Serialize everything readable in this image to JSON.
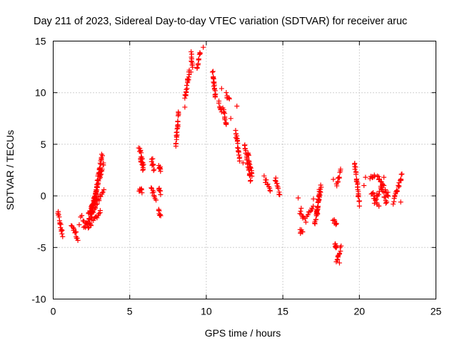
{
  "chart_data": {
    "type": "scatter",
    "title": "Day 211 of 2023, Sidereal Day-to-day VTEC variation (SDTVAR) for receiver aruc",
    "xlabel": "GPS time / hours",
    "ylabel": "SDTVAR / TECUs",
    "xlim": [
      0,
      25
    ],
    "ylim": [
      -10,
      15
    ],
    "xticks": [
      0,
      5,
      10,
      15,
      20,
      25
    ],
    "yticks": [
      -10,
      -5,
      0,
      5,
      10,
      15
    ],
    "grid": true,
    "marker": "+",
    "color": "#ff0000",
    "series": [
      {
        "name": "SDTVAR",
        "segments": [
          {
            "x": [
              0.3,
              0.6
            ],
            "y": [
              -1.6,
              -3.8
            ]
          },
          {
            "x": [
              1.2,
              1.6
            ],
            "y": [
              -2.8,
              -4.2
            ]
          },
          {
            "x": [
              1.8,
              2.4
            ],
            "y": [
              -2.0,
              -2.8
            ]
          },
          {
            "x": [
              2.3,
              2.9
            ],
            "y": [
              -1.8,
              0.0
            ]
          },
          {
            "x": [
              2.4,
              3.3
            ],
            "y": [
              -1.8,
              3.2
            ]
          },
          {
            "x": [
              2.5,
              3.2
            ],
            "y": [
              -2.0,
              4.0
            ]
          },
          {
            "x": [
              2.0,
              3.3
            ],
            "y": [
              -3.2,
              0.5
            ]
          },
          {
            "x": [
              2.3,
              3.1
            ],
            "y": [
              -3.0,
              -1.5
            ]
          },
          {
            "x": [
              5.6,
              5.9
            ],
            "y": [
              4.8,
              3.0
            ]
          },
          {
            "x": [
              5.7,
              5.9
            ],
            "y": [
              3.8,
              2.5
            ]
          },
          {
            "x": [
              5.6,
              5.8
            ],
            "y": [
              0.4,
              0.8
            ]
          },
          {
            "x": [
              6.4,
              6.6
            ],
            "y": [
              3.5,
              2.5
            ]
          },
          {
            "x": [
              6.4,
              6.7
            ],
            "y": [
              0.8,
              -0.4
            ]
          },
          {
            "x": [
              6.9,
              7.0
            ],
            "y": [
              2.8,
              2.5
            ]
          },
          {
            "x": [
              6.9,
              7.0
            ],
            "y": [
              -1.4,
              -1.8
            ]
          },
          {
            "x": [
              6.9,
              7.0
            ],
            "y": [
              0.8,
              0.2
            ]
          },
          {
            "x": [
              8.0,
              8.2
            ],
            "y": [
              5.0,
              8.0
            ]
          },
          {
            "x": [
              8.6,
              8.9
            ],
            "y": [
              9.5,
              12.0
            ]
          },
          {
            "x": [
              9.0,
              9.1
            ],
            "y": [
              13.8,
              12.5
            ]
          },
          {
            "x": [
              9.4,
              9.6
            ],
            "y": [
              12.4,
              13.8
            ]
          },
          {
            "x": [
              10.4,
              10.6
            ],
            "y": [
              12.0,
              9.5
            ]
          },
          {
            "x": [
              10.8,
              11.0
            ],
            "y": [
              9.0,
              8.2
            ]
          },
          {
            "x": [
              11.1,
              11.3
            ],
            "y": [
              8.5,
              6.8
            ]
          },
          {
            "x": [
              11.3,
              11.5
            ],
            "y": [
              9.8,
              9.5
            ]
          },
          {
            "x": [
              11.9,
              12.2
            ],
            "y": [
              6.3,
              3.5
            ]
          },
          {
            "x": [
              12.5,
              12.9
            ],
            "y": [
              5.0,
              1.5
            ]
          },
          {
            "x": [
              12.7,
              13.0
            ],
            "y": [
              4.2,
              2.0
            ]
          },
          {
            "x": [
              13.8,
              14.2
            ],
            "y": [
              1.8,
              0.5
            ]
          },
          {
            "x": [
              14.5,
              14.8
            ],
            "y": [
              1.7,
              0.2
            ]
          },
          {
            "x": [
              16.1,
              16.3
            ],
            "y": [
              -3.4,
              -3.6
            ]
          },
          {
            "x": [
              16.1,
              16.5
            ],
            "y": [
              -1.5,
              -2.5
            ]
          },
          {
            "x": [
              16.6,
              17.0
            ],
            "y": [
              -1.8,
              -1.0
            ]
          },
          {
            "x": [
              17.1,
              17.4
            ],
            "y": [
              -2.8,
              0.5
            ]
          },
          {
            "x": [
              17.2,
              17.5
            ],
            "y": [
              -2.0,
              1.0
            ]
          },
          {
            "x": [
              18.3,
              18.5
            ],
            "y": [
              -2.4,
              -2.8
            ]
          },
          {
            "x": [
              18.4,
              18.5
            ],
            "y": [
              -4.7,
              -5.0
            ]
          },
          {
            "x": [
              18.5,
              18.8
            ],
            "y": [
              -6.4,
              -5.0
            ]
          },
          {
            "x": [
              18.5,
              18.8
            ],
            "y": [
              1.0,
              2.4
            ]
          },
          {
            "x": [
              19.7,
              20.0
            ],
            "y": [
              3.2,
              -0.8
            ]
          },
          {
            "x": [
              20.7,
              21.0
            ],
            "y": [
              1.8,
              1.9
            ]
          },
          {
            "x": [
              20.8,
              21.3
            ],
            "y": [
              0.2,
              -1.0
            ]
          },
          {
            "x": [
              21.2,
              21.8
            ],
            "y": [
              2.0,
              -0.8
            ]
          },
          {
            "x": [
              21.4,
              21.9
            ],
            "y": [
              1.5,
              0.0
            ]
          },
          {
            "x": [
              22.2,
              22.8
            ],
            "y": [
              -0.6,
              2.1
            ]
          },
          {
            "x": [
              21.0,
              21.3
            ],
            "y": [
              -0.5,
              0.5
            ]
          }
        ],
        "points": [
          {
            "x": 1.5,
            "y": -3.5
          },
          {
            "x": 1.7,
            "y": -2.8
          },
          {
            "x": 5.8,
            "y": 0.3
          },
          {
            "x": 6.5,
            "y": 3.6
          },
          {
            "x": 8.6,
            "y": 8.6
          },
          {
            "x": 9.0,
            "y": 12.0
          },
          {
            "x": 9.8,
            "y": 14.4
          },
          {
            "x": 11.0,
            "y": 10.4
          },
          {
            "x": 12.0,
            "y": 8.7
          },
          {
            "x": 11.6,
            "y": 7.5
          },
          {
            "x": 12.4,
            "y": 3.2
          },
          {
            "x": 16.0,
            "y": -0.2
          },
          {
            "x": 16.2,
            "y": -1.2
          },
          {
            "x": 17.0,
            "y": -0.3
          },
          {
            "x": 18.7,
            "y": -6.5
          },
          {
            "x": 18.3,
            "y": 1.6
          },
          {
            "x": 20.4,
            "y": 1.8
          },
          {
            "x": 20.3,
            "y": 1.0
          },
          {
            "x": 20.9,
            "y": 0.3
          },
          {
            "x": 21.6,
            "y": 1.8
          },
          {
            "x": 22.7,
            "y": -0.6
          }
        ]
      }
    ]
  }
}
